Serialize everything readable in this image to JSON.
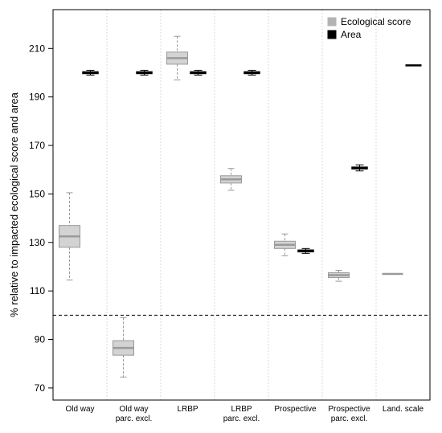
{
  "chart_data": {
    "type": "box",
    "ylabel": "% relative to impacted ecological score and area",
    "ylim": [
      65,
      226
    ],
    "yticks": [
      70,
      90,
      110,
      130,
      150,
      170,
      190,
      210
    ],
    "reference_line": 100,
    "categories": [
      [
        "Old way"
      ],
      [
        "Old way",
        "parc. excl."
      ],
      [
        "LRBP"
      ],
      [
        "LRBP",
        "parc. excl."
      ],
      [
        "Prospective"
      ],
      [
        "Prospective",
        "parc. excl."
      ],
      [
        "Land. scale"
      ]
    ],
    "legend": {
      "position": "top-right",
      "entries": [
        {
          "label": "Ecological score",
          "color": "#b3b3b3"
        },
        {
          "label": "Area",
          "color": "#000000"
        }
      ]
    },
    "series": [
      {
        "name": "Ecological score",
        "color": "#b3b3b3",
        "boxes": [
          {
            "category": 0,
            "whisker_low": 114.5,
            "q1": 128,
            "median": 132.5,
            "q3": 137,
            "whisker_high": 150.5
          },
          {
            "category": 1,
            "whisker_low": 74.5,
            "q1": 83.5,
            "median": 86.5,
            "q3": 89.5,
            "whisker_high": 99
          },
          {
            "category": 2,
            "whisker_low": 197,
            "q1": 203.5,
            "median": 206,
            "q3": 208.5,
            "whisker_high": 215
          },
          {
            "category": 3,
            "whisker_low": 151.5,
            "q1": 154.5,
            "median": 156,
            "q3": 157.5,
            "whisker_high": 160.5
          },
          {
            "category": 4,
            "whisker_low": 124.5,
            "q1": 127.5,
            "median": 129,
            "q3": 130.5,
            "whisker_high": 133.5
          },
          {
            "category": 5,
            "whisker_low": 114,
            "q1": 115.5,
            "median": 116.5,
            "q3": 117.5,
            "whisker_high": 118.5
          },
          {
            "category": 6,
            "whisker_low": 117,
            "q1": 117,
            "median": 117,
            "q3": 117,
            "whisker_high": 117
          }
        ]
      },
      {
        "name": "Area",
        "color": "#000000",
        "boxes": [
          {
            "category": 0,
            "whisker_low": 199,
            "q1": 199.5,
            "median": 200,
            "q3": 200.5,
            "whisker_high": 201
          },
          {
            "category": 1,
            "whisker_low": 199,
            "q1": 199.5,
            "median": 200,
            "q3": 200.5,
            "whisker_high": 201
          },
          {
            "category": 2,
            "whisker_low": 199,
            "q1": 199.5,
            "median": 200,
            "q3": 200.5,
            "whisker_high": 201
          },
          {
            "category": 3,
            "whisker_low": 199,
            "q1": 199.5,
            "median": 200,
            "q3": 200.5,
            "whisker_high": 201
          },
          {
            "category": 4,
            "whisker_low": 125.5,
            "q1": 126,
            "median": 126.5,
            "q3": 127,
            "whisker_high": 127.5
          },
          {
            "category": 5,
            "whisker_low": 159.5,
            "q1": 160.2,
            "median": 160.7,
            "q3": 161.2,
            "whisker_high": 162
          },
          {
            "category": 6,
            "whisker_low": 203,
            "q1": 203,
            "median": 203,
            "q3": 203,
            "whisker_high": 203
          }
        ]
      }
    ]
  }
}
